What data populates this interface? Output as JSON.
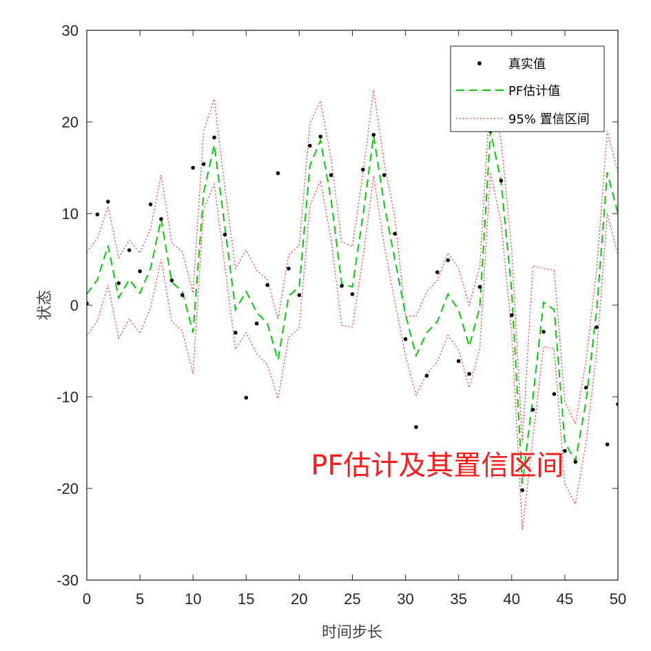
{
  "chart_data": {
    "type": "line",
    "title": "",
    "xlabel": "时间步长",
    "ylabel": "状态",
    "xlim": [
      0,
      50
    ],
    "ylim": [
      -30,
      30
    ],
    "xticks": [
      0,
      5,
      10,
      15,
      20,
      25,
      30,
      35,
      40,
      45,
      50
    ],
    "yticks": [
      -30,
      -20,
      -10,
      0,
      10,
      20,
      30
    ],
    "grid": false,
    "legend_position": "top-right",
    "annotation": {
      "text": "PF估计及其置信区间",
      "x": 33,
      "y": -18.5,
      "color": "#ff1a1a"
    },
    "series": [
      {
        "name": "真实值",
        "style": "markers",
        "color": "#000000",
        "x": [
          0,
          1,
          2,
          3,
          4,
          5,
          6,
          7,
          8,
          9,
          10,
          11,
          12,
          13,
          14,
          15,
          16,
          17,
          18,
          19,
          20,
          21,
          22,
          23,
          24,
          25,
          26,
          27,
          28,
          29,
          30,
          31,
          32,
          33,
          34,
          35,
          36,
          37,
          38,
          39,
          40,
          41,
          42,
          43,
          44,
          45,
          46,
          47,
          48,
          49,
          50
        ],
        "y": [
          0.2,
          9.9,
          11.3,
          2.4,
          6.0,
          3.7,
          11.0,
          9.4,
          2.7,
          1.1,
          15.0,
          15.4,
          18.3,
          7.7,
          -3.0,
          -10.1,
          -2.0,
          2.2,
          14.4,
          4.0,
          1.1,
          17.4,
          18.4,
          14.2,
          2.1,
          1.2,
          14.8,
          18.6,
          14.2,
          7.8,
          -3.7,
          -13.3,
          -7.7,
          3.6,
          4.9,
          -6.1,
          -7.5,
          2.0,
          19.0,
          13.6,
          -1.1,
          -20.2,
          -11.4,
          -2.9,
          -9.7,
          -15.9,
          -17.1,
          -9.0,
          -2.4,
          -15.2,
          -10.8
        ]
      },
      {
        "name": "PF估计值",
        "style": "dashed",
        "color": "#00cc00",
        "x": [
          0,
          1,
          2,
          3,
          4,
          5,
          6,
          7,
          8,
          9,
          10,
          11,
          12,
          13,
          14,
          15,
          16,
          17,
          18,
          19,
          20,
          21,
          22,
          23,
          24,
          25,
          26,
          27,
          28,
          29,
          30,
          31,
          32,
          33,
          34,
          35,
          36,
          37,
          38,
          39,
          40,
          41,
          42,
          43,
          44,
          45,
          46,
          47,
          48,
          49,
          50
        ],
        "y": [
          1.2,
          2.8,
          6.5,
          0.8,
          2.8,
          1.3,
          4.0,
          9.4,
          2.5,
          1.5,
          -3.0,
          12.3,
          17.5,
          8.5,
          -0.5,
          1.5,
          -0.8,
          -2.0,
          -6.0,
          1.0,
          2.0,
          15.2,
          18.0,
          11.5,
          2.3,
          2.0,
          9.8,
          18.5,
          11.0,
          5.0,
          -1.0,
          -5.5,
          -3.0,
          -1.8,
          1.2,
          -0.5,
          -4.5,
          -0.2,
          19.0,
          13.5,
          1.5,
          -19.5,
          -10.0,
          0.3,
          -0.5,
          -15.0,
          -17.0,
          -10.5,
          -0.5,
          14.5,
          10.0
        ]
      },
      {
        "name": "95% 置信区间",
        "style": "dotted",
        "color": "#ff3333",
        "x": [
          0,
          1,
          2,
          3,
          4,
          5,
          6,
          7,
          8,
          9,
          10,
          11,
          12,
          13,
          14,
          15,
          16,
          17,
          18,
          19,
          20,
          21,
          22,
          23,
          24,
          25,
          26,
          27,
          28,
          29,
          30,
          31,
          32,
          33,
          34,
          35,
          36,
          37,
          38,
          39,
          40,
          41,
          42,
          43,
          44,
          45,
          46,
          47,
          48,
          49,
          50
        ],
        "y": [
          5.8,
          7.3,
          10.8,
          5.2,
          7.1,
          5.7,
          8.3,
          14.2,
          6.8,
          5.8,
          1.3,
          19.0,
          22.5,
          12.8,
          4.0,
          6.0,
          3.8,
          2.8,
          -1.5,
          5.5,
          6.5,
          19.8,
          22.3,
          15.9,
          6.9,
          6.4,
          14.4,
          23.5,
          15.5,
          9.6,
          -1.2,
          -1.2,
          1.5,
          2.7,
          5.7,
          4.0,
          0.0,
          4.3,
          23.5,
          18.0,
          6.0,
          -15.0,
          4.3,
          4.0,
          3.8,
          -10.5,
          -13.0,
          -6.0,
          4.0,
          19.0,
          14.5
        ]
      },
      {
        "name": "95% 置信区间 (lower)",
        "style": "dotted",
        "color": "#ff3333",
        "x": [
          0,
          1,
          2,
          3,
          4,
          5,
          6,
          7,
          8,
          9,
          10,
          11,
          12,
          13,
          14,
          15,
          16,
          17,
          18,
          19,
          20,
          21,
          22,
          23,
          24,
          25,
          26,
          27,
          28,
          29,
          30,
          31,
          32,
          33,
          34,
          35,
          36,
          37,
          38,
          39,
          40,
          41,
          42,
          43,
          44,
          45,
          46,
          47,
          48,
          49,
          50
        ],
        "y": [
          -3.4,
          -1.7,
          2.2,
          -3.6,
          -1.5,
          -3.1,
          -0.3,
          5.0,
          -1.8,
          -2.8,
          -7.5,
          10.5,
          13.2,
          4.2,
          -4.8,
          -3.0,
          -5.3,
          -6.5,
          -10.2,
          -3.5,
          -2.5,
          10.8,
          13.6,
          7.1,
          -2.2,
          -2.4,
          5.2,
          14.1,
          6.5,
          0.4,
          -5.5,
          -9.8,
          -7.5,
          -6.2,
          -3.3,
          -4.9,
          -9.0,
          -4.7,
          14.5,
          9.0,
          -3.0,
          -24.5,
          -14.5,
          -4.5,
          -4.8,
          -19.5,
          -21.7,
          -15.0,
          -5.0,
          10.0,
          5.5
        ]
      }
    ]
  }
}
